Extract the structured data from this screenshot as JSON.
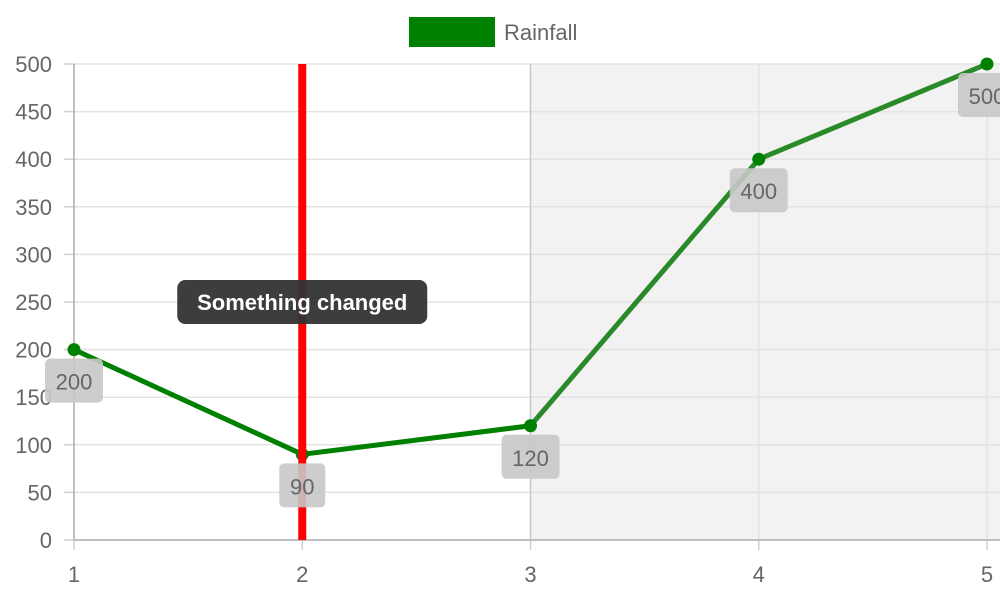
{
  "chart_data": {
    "type": "line",
    "x": [
      1,
      2,
      3,
      4,
      5
    ],
    "xlim": [
      1,
      5
    ],
    "ylim": [
      0,
      500
    ],
    "y_ticks": [
      0,
      50,
      100,
      150,
      200,
      250,
      300,
      350,
      400,
      450,
      500
    ],
    "x_ticks": [
      1,
      2,
      3,
      4,
      5
    ],
    "grid": true,
    "legend_placement": "top-center",
    "series": [
      {
        "name": "Rainfall",
        "values": [
          200,
          90,
          120,
          400,
          500
        ],
        "color": "#008000"
      }
    ],
    "data_labels": [
      "200",
      "90",
      "120",
      "400",
      "500"
    ],
    "annotations": {
      "vertical_line": {
        "x": 2,
        "color": "#ff0000"
      },
      "label": {
        "text": "Something changed",
        "x": 2,
        "y": 250
      },
      "shaded_region": {
        "x_start": 3,
        "x_end": 5,
        "color": "#f2f2f2"
      }
    }
  }
}
